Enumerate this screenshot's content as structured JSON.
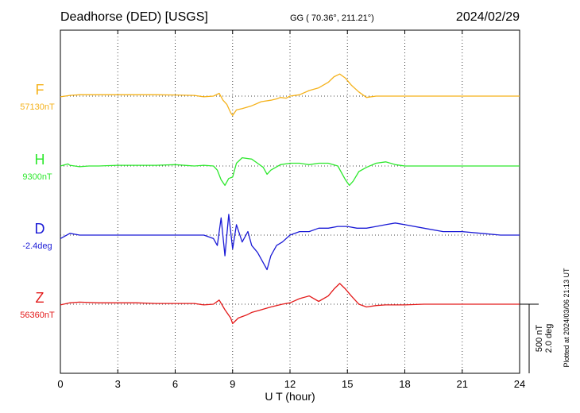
{
  "header": {
    "station": "Deadhorse (DED)  [USGS]",
    "coords": "GG ( 70.36°, 211.21°)",
    "date": "2024/02/29"
  },
  "footer_note": "Plotted at 2024/03/06 21:13 UT",
  "scale_bar": {
    "line1": "500 nT",
    "line2": "2.0 deg"
  },
  "chart_data": {
    "type": "line",
    "xlabel": "U T (hour)",
    "xlim": [
      0,
      24
    ],
    "xticks": [
      "0",
      "3",
      "6",
      "9",
      "12",
      "15",
      "18",
      "21",
      "24"
    ],
    "grid": true,
    "y_unit_scale": "500 nT / 2.0 deg per bar",
    "series": [
      {
        "name": "F",
        "baseline": "57130nT",
        "color": "#f5b21b",
        "x": [
          0,
          0.5,
          1,
          1.5,
          2,
          3,
          4,
          5,
          6,
          7,
          7.5,
          8,
          8.3,
          8.5,
          8.7,
          8.9,
          9.0,
          9.2,
          9.5,
          10,
          10.5,
          11,
          11.3,
          11.5,
          11.8,
          12,
          12.5,
          13,
          13.5,
          14,
          14.3,
          14.6,
          14.9,
          15.2,
          15.6,
          16,
          16.5,
          17,
          18,
          19,
          20,
          21,
          22,
          23,
          24
        ],
        "y": [
          -5,
          5,
          10,
          10,
          10,
          10,
          10,
          10,
          8,
          5,
          -5,
          0,
          20,
          -30,
          -60,
          -120,
          -140,
          -100,
          -90,
          -70,
          -40,
          -30,
          -20,
          -10,
          -15,
          0,
          10,
          40,
          60,
          100,
          140,
          160,
          130,
          80,
          30,
          -10,
          0,
          0,
          0,
          0,
          0,
          0,
          0,
          0,
          0
        ]
      },
      {
        "name": "H",
        "baseline": "9300nT",
        "color": "#2ee82e",
        "x": [
          0,
          0.4,
          0.5,
          1,
          1.5,
          2,
          3,
          4,
          5,
          6,
          7,
          7.5,
          8,
          8.2,
          8.4,
          8.6,
          8.8,
          9.0,
          9.2,
          9.5,
          10,
          10.3,
          10.6,
          10.8,
          11,
          11.5,
          12,
          12.5,
          13,
          13.5,
          14,
          14.5,
          14.9,
          15.1,
          15.3,
          15.6,
          16,
          16.5,
          17,
          17.5,
          18,
          19,
          20,
          21,
          22,
          23,
          24
        ],
        "y": [
          0,
          15,
          5,
          -5,
          0,
          0,
          5,
          5,
          5,
          10,
          0,
          5,
          0,
          -30,
          -100,
          -140,
          -90,
          -80,
          20,
          60,
          50,
          20,
          -10,
          -60,
          -30,
          10,
          20,
          20,
          10,
          20,
          20,
          0,
          -100,
          -140,
          -110,
          -40,
          -10,
          20,
          30,
          10,
          0,
          0,
          0,
          0,
          0,
          0,
          0
        ]
      },
      {
        "name": "D",
        "baseline": "-2.4deg",
        "color": "#1a1ad6",
        "x": [
          0,
          0.5,
          1,
          2,
          3,
          4,
          5,
          6,
          7,
          7.5,
          8,
          8.2,
          8.4,
          8.6,
          8.8,
          9.0,
          9.2,
          9.5,
          9.8,
          10,
          10.3,
          10.6,
          10.8,
          11,
          11.3,
          11.6,
          12,
          12.5,
          13,
          13.5,
          14,
          14.5,
          15,
          15.5,
          16,
          16.5,
          17,
          17.5,
          18,
          19,
          20,
          21,
          22,
          23,
          24
        ],
        "y": [
          -0.1,
          0.05,
          0.0,
          0.0,
          0.0,
          0.0,
          0.0,
          0.0,
          0.0,
          0.0,
          -0.1,
          -0.3,
          0.5,
          -0.6,
          0.6,
          -0.4,
          0.3,
          -0.2,
          0.1,
          -0.3,
          -0.5,
          -0.8,
          -1.0,
          -0.6,
          -0.3,
          -0.2,
          0.0,
          0.1,
          0.1,
          0.2,
          0.2,
          0.25,
          0.25,
          0.2,
          0.2,
          0.25,
          0.3,
          0.35,
          0.3,
          0.2,
          0.1,
          0.1,
          0.05,
          0.0,
          0.0
        ]
      },
      {
        "name": "Z",
        "baseline": "56360nT",
        "color": "#e31a1a",
        "x": [
          0,
          0.5,
          1,
          2,
          3,
          4,
          5,
          6,
          7,
          7.5,
          8,
          8.3,
          8.6,
          8.9,
          9.0,
          9.3,
          9.7,
          10,
          10.5,
          11,
          11.3,
          11.6,
          12,
          12.5,
          13,
          13.5,
          14,
          14.3,
          14.6,
          14.9,
          15.2,
          15.6,
          16,
          16.5,
          17,
          18,
          19,
          20,
          21,
          22,
          23,
          24
        ],
        "y": [
          -5,
          10,
          15,
          10,
          10,
          10,
          5,
          5,
          5,
          -5,
          0,
          30,
          -40,
          -100,
          -140,
          -100,
          -80,
          -60,
          -40,
          -20,
          -10,
          0,
          10,
          40,
          60,
          20,
          60,
          110,
          150,
          110,
          60,
          0,
          -20,
          -10,
          -5,
          -5,
          0,
          0,
          0,
          0,
          0,
          0
        ]
      }
    ]
  }
}
